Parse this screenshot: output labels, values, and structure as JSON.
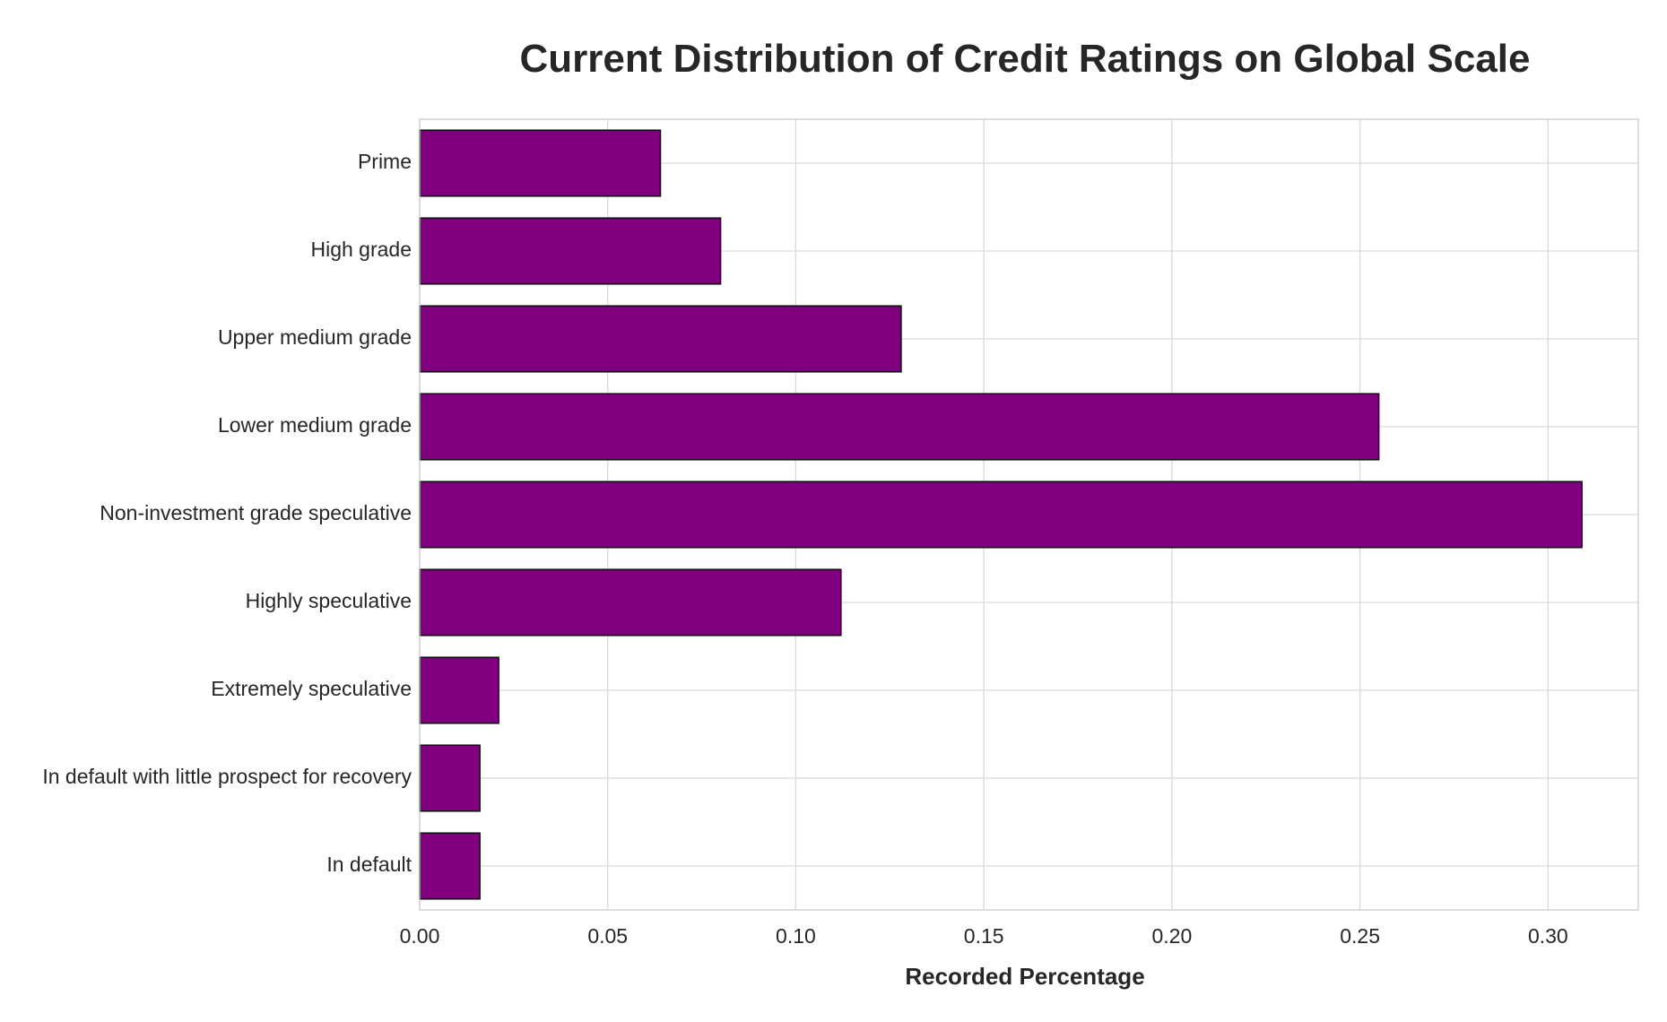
{
  "chart_data": {
    "type": "bar",
    "orientation": "horizontal",
    "title": "Current Distribution of Credit Ratings on Global Scale",
    "xlabel": "Recorded Percentage",
    "ylabel": "",
    "categories": [
      "Prime",
      "High grade",
      "Upper medium grade",
      "Lower medium grade",
      "Non-investment grade speculative",
      "Highly speculative",
      "Extremely speculative",
      "In default with little prospect for recovery",
      "In default"
    ],
    "values": [
      0.064,
      0.08,
      0.128,
      0.255,
      0.309,
      0.112,
      0.021,
      0.016,
      0.016
    ],
    "xlim": [
      0,
      0.324
    ],
    "xticks": [
      "0.00",
      "0.05",
      "0.10",
      "0.15",
      "0.20",
      "0.25",
      "0.30"
    ],
    "bar_color": "#800080",
    "grid": true
  }
}
